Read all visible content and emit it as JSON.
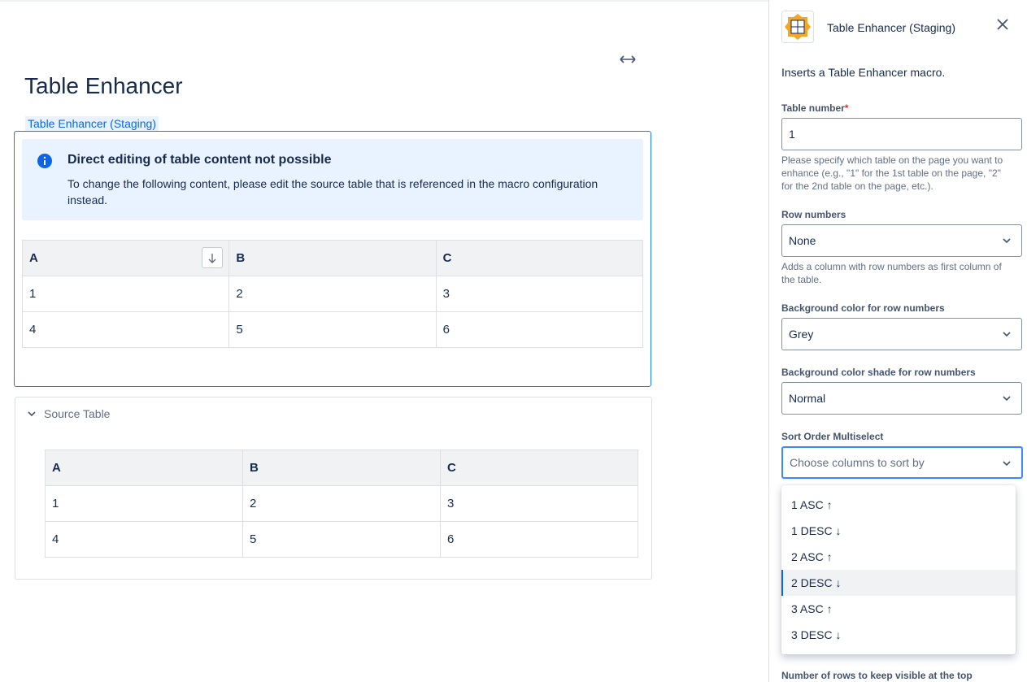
{
  "page": {
    "title": "Table Enhancer",
    "macro_label": "Table Enhancer (Staging)",
    "notice": {
      "title": "Direct editing of table content not possible",
      "body": "To change the following content, please edit the source table that is referenced in the macro configuration instead."
    },
    "table": {
      "header": [
        "A",
        "B",
        "C"
      ],
      "rows": [
        [
          1,
          2,
          3
        ],
        [
          4,
          5,
          6
        ]
      ]
    },
    "source_table": {
      "label": "Source Table",
      "header": [
        "A",
        "B",
        "C"
      ],
      "rows": [
        [
          1,
          2,
          3
        ],
        [
          4,
          5,
          6
        ]
      ]
    }
  },
  "panel": {
    "app_name": "Table Enhancer (Staging)",
    "description": "Inserts a Table Enhancer macro.",
    "table_number": {
      "label": "Table number",
      "required": "*",
      "value": "1",
      "help": "Please specify which table on the page you want to enhance (e.g., \"1\" for the 1st table on the page, \"2\" for the 2nd table on the page, etc.)."
    },
    "row_numbers": {
      "label": "Row numbers",
      "value": "None",
      "help": "Adds a column with row numbers as first column of the table."
    },
    "background_color": {
      "label": "Background color for row numbers",
      "value": "Grey"
    },
    "background_shade": {
      "label": "Background color shade for row numbers",
      "value": "Normal"
    },
    "sort_order": {
      "label": "Sort Order Multiselect",
      "placeholder": "Choose columns to sort by",
      "options": [
        "1 ASC ↑",
        "1 DESC ↓",
        "2 ASC ↑",
        "2 DESC ↓",
        "3 ASC ↑",
        "3 DESC ↓"
      ]
    },
    "next_field": {
      "label": "Number of rows to keep visible at the top"
    }
  }
}
